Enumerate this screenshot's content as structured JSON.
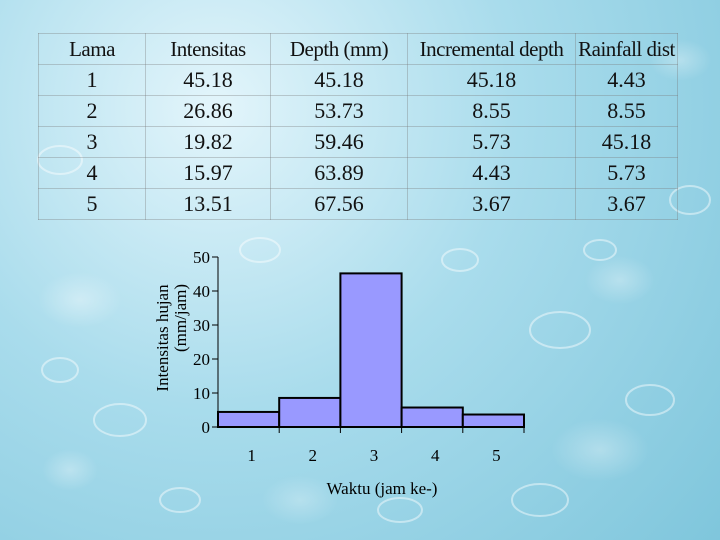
{
  "table": {
    "headers": [
      "Lama",
      "Intensitas",
      "Depth (mm)",
      "Incremental depth",
      "Rainfall dist"
    ],
    "rows": [
      [
        "1",
        "45.18",
        "45.18",
        "45.18",
        "4.43"
      ],
      [
        "2",
        "26.86",
        "53.73",
        "8.55",
        "8.55"
      ],
      [
        "3",
        "19.82",
        "59.46",
        "5.73",
        "45.18"
      ],
      [
        "4",
        "15.97",
        "63.89",
        "4.43",
        "5.73"
      ],
      [
        "5",
        "13.51",
        "67.56",
        "3.67",
        "3.67"
      ]
    ]
  },
  "chart_data": {
    "type": "bar",
    "categories": [
      "1",
      "2",
      "3",
      "4",
      "5"
    ],
    "values": [
      4.43,
      8.55,
      45.18,
      5.73,
      3.67
    ],
    "xlabel": "Waktu (jam ke-)",
    "ylabel_line1": "Intensitas hujan",
    "ylabel_line2": "(mm/jam)",
    "ylim": [
      0,
      50
    ],
    "yticks": [
      "0",
      "10",
      "20",
      "30",
      "40",
      "50"
    ],
    "grid": false,
    "bar_color": "#9999ff",
    "bar_stroke": "#000000"
  }
}
